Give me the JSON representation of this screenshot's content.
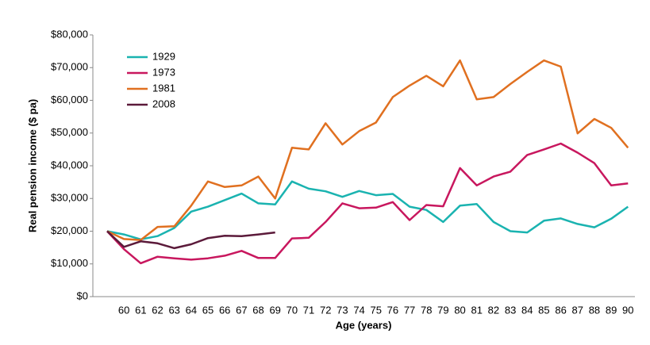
{
  "chart_data": {
    "type": "line",
    "x_label": "Age  (years)",
    "y_label": "Real pension income ($ pa)",
    "categories": [
      null,
      60,
      61,
      62,
      63,
      64,
      65,
      66,
      67,
      68,
      69,
      70,
      71,
      72,
      73,
      74,
      75,
      76,
      77,
      78,
      79,
      80,
      81,
      82,
      83,
      84,
      85,
      86,
      87,
      88,
      89,
      90
    ],
    "series": [
      {
        "name": "1929",
        "color": "#1ab3b0",
        "values": [
          20000,
          19000,
          17500,
          18500,
          21000,
          26000,
          27500,
          29500,
          31500,
          28500,
          28200,
          35200,
          33000,
          32200,
          30500,
          32300,
          31000,
          31400,
          27500,
          26500,
          22800,
          27800,
          28300,
          22800,
          20000,
          19600,
          23200,
          23900,
          22200,
          21200,
          23800,
          27500
        ]
      },
      {
        "name": "1973",
        "color": "#c8175e",
        "values": [
          20000,
          14500,
          10200,
          12200,
          11700,
          11300,
          11700,
          12500,
          14000,
          11800,
          11800,
          17800,
          18000,
          22800,
          28500,
          27000,
          27200,
          28900,
          23400,
          28000,
          27600,
          39300,
          34000,
          36700,
          38200,
          43300,
          45000,
          46800,
          44000,
          40800,
          34000,
          34600
        ]
      },
      {
        "name": "1981",
        "color": "#e07020",
        "values": [
          20000,
          17600,
          17300,
          21300,
          21500,
          27800,
          35200,
          33500,
          34000,
          36700,
          30000,
          45500,
          45000,
          53000,
          46500,
          50600,
          53200,
          61000,
          64500,
          67500,
          64300,
          72200,
          60300,
          61000,
          65000,
          68700,
          72200,
          70300,
          49900,
          54300,
          51600,
          45500
        ]
      },
      {
        "name": "2008",
        "color": "#5b1a3a",
        "values": [
          20000,
          15200,
          16900,
          16300,
          14800,
          16000,
          17900,
          18600,
          18500,
          19000,
          19600,
          null,
          null,
          null,
          null,
          null,
          null,
          null,
          null,
          null,
          null,
          null,
          null,
          null,
          null,
          null,
          null,
          null,
          null,
          null,
          null,
          null
        ]
      }
    ],
    "ylim": [
      0,
      80000
    ],
    "yticks": [
      {
        "value": 0,
        "label": "$0"
      },
      {
        "value": 10000,
        "label": "$10,000"
      },
      {
        "value": 20000,
        "label": "$20,000"
      },
      {
        "value": 30000,
        "label": "$30,000"
      },
      {
        "value": 40000,
        "label": "$40,000"
      },
      {
        "value": 50000,
        "label": "$50,000"
      },
      {
        "value": 60000,
        "label": "$60,000"
      },
      {
        "value": 70000,
        "label": "$70,000"
      },
      {
        "value": 80000,
        "label": "$80,000"
      }
    ],
    "legend": "top-left"
  }
}
